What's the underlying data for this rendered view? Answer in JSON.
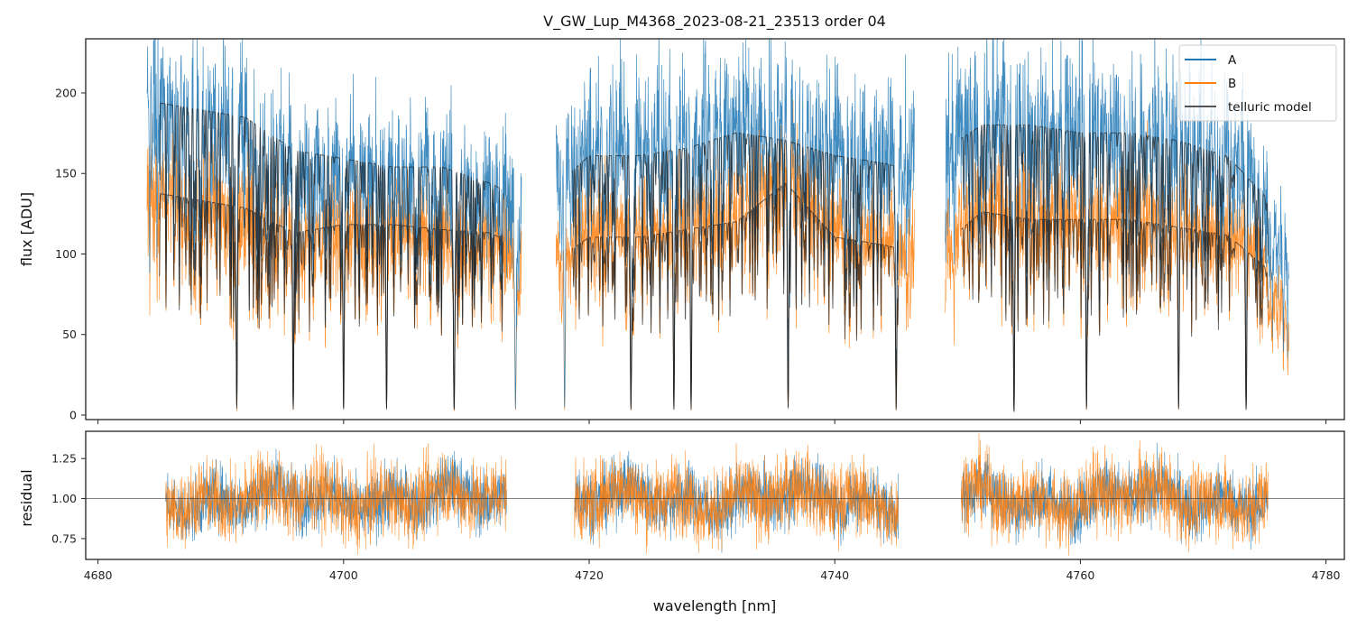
{
  "chart_data": [
    {
      "type": "line",
      "title": "V_GW_Lup_M4368_2023-08-21_23513  order 04",
      "xlabel": "",
      "ylabel": "flux [ADU]",
      "xlim": [
        4679.0,
        4781.5
      ],
      "ylim": [
        -2.8,
        233.6
      ],
      "xticks": [
        4680,
        4700,
        4720,
        4740,
        4760,
        4780
      ],
      "yticks": [
        0,
        50,
        100,
        150,
        200
      ],
      "ytick_labels": [
        "0",
        "50",
        "100",
        "150",
        "200"
      ],
      "legend": {
        "placement": "top-right",
        "entries": [
          "A",
          "B",
          "telluric model"
        ]
      },
      "series": [
        {
          "name": "A",
          "color": "#1f77b4",
          "segments": [
            {
              "x": [
                4684,
                4688,
                4692,
                4696,
                4700,
                4704,
                4708,
                4712,
                4714.5
              ],
              "continuum": [
                190,
                185,
                180,
                160,
                155,
                150,
                150,
                140,
                130
              ]
            },
            {
              "x": [
                4717.3,
                4720,
                4724,
                4728,
                4732,
                4736,
                4740,
                4744,
                4746.5
              ],
              "continuum": [
                150,
                170,
                170,
                175,
                185,
                180,
                170,
                165,
                160
              ]
            },
            {
              "x": [
                4749,
                4752,
                4756,
                4760,
                4764,
                4768,
                4772,
                4775,
                4777
              ],
              "continuum": [
                170,
                185,
                185,
                180,
                180,
                175,
                165,
                140,
                90
              ]
            }
          ]
        },
        {
          "name": "B",
          "color": "#ff7f0e",
          "segments": [
            {
              "x": [
                4684,
                4688,
                4692,
                4696,
                4700,
                4704,
                4708,
                4712,
                4714.5
              ],
              "continuum": [
                135,
                130,
                125,
                110,
                115,
                115,
                112,
                110,
                100
              ]
            },
            {
              "x": [
                4717.3,
                4720,
                4724,
                4728,
                4732,
                4736,
                4740,
                4744,
                4746.5
              ],
              "continuum": [
                100,
                115,
                115,
                120,
                125,
                150,
                115,
                110,
                105
              ]
            },
            {
              "x": [
                4749,
                4752,
                4756,
                4760,
                4764,
                4768,
                4772,
                4775,
                4777
              ],
              "continuum": [
                110,
                130,
                125,
                125,
                125,
                120,
                115,
                95,
                55
              ]
            }
          ]
        },
        {
          "name": "telluric model",
          "color": "#333333",
          "segments": [
            {
              "x": [
                4685,
                4713
              ],
              "levels": [
                178,
                130
              ]
            },
            {
              "x": [
                4718.6,
                4745.2
              ],
              "levels": [
                180,
                125
              ]
            },
            {
              "x": [
                4750.3,
                4775.3
              ],
              "levels": [
                185,
                128
              ]
            }
          ],
          "deep_lines_nm": [
            4691.3,
            4695.9,
            4700.0,
            4703.5,
            4709.0,
            4714.0,
            4718.0,
            4723.4,
            4726.9,
            4728.3,
            4736.2,
            4745.0,
            4754.6,
            4760.5,
            4768.0,
            4773.5
          ]
        }
      ]
    },
    {
      "type": "line",
      "xlabel": "wavelength [nm]",
      "ylabel": "residual",
      "xlim": [
        4679.0,
        4781.5
      ],
      "ylim": [
        0.62,
        1.42
      ],
      "xticks": [
        4680,
        4700,
        4720,
        4740,
        4760,
        4780
      ],
      "xtick_labels": [
        "4680",
        "4700",
        "4720",
        "4740",
        "4760",
        "4780"
      ],
      "yticks": [
        0.75,
        1.0,
        1.25
      ],
      "ytick_labels": [
        "0.75",
        "1.00",
        "1.25"
      ],
      "reference_line": 1.0,
      "series": [
        {
          "name": "A",
          "color": "#1f77b4",
          "segments": [
            [
              4685.5,
              4713.3
            ],
            [
              4718.8,
              4745.2
            ],
            [
              4750.3,
              4775.3
            ]
          ],
          "mean": 1.0,
          "scatter": 0.1
        },
        {
          "name": "B",
          "color": "#ff7f0e",
          "segments": [
            [
              4685.5,
              4713.3
            ],
            [
              4718.8,
              4745.2
            ],
            [
              4750.3,
              4775.3
            ]
          ],
          "mean": 1.0,
          "scatter": 0.12
        }
      ]
    }
  ]
}
